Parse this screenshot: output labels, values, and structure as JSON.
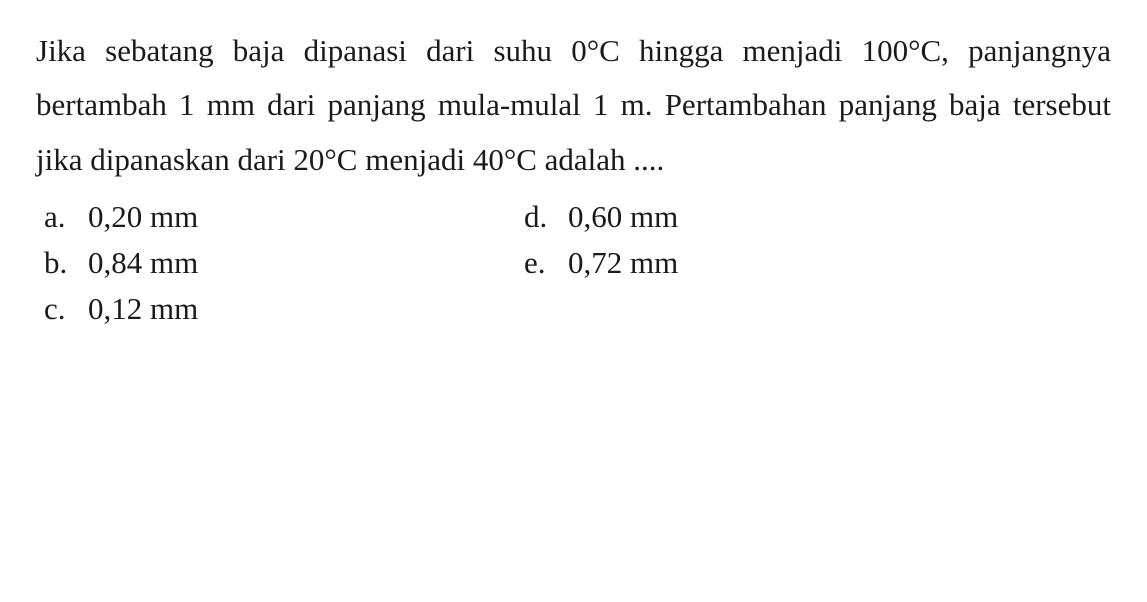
{
  "question": {
    "text": "Jika sebatang baja dipanasi dari suhu 0°C hingga menjadi 100°C, panjangnya bertambah 1 mm dari panjang mula-mulal 1 m. Pertambahan panjang baja tersebut jika dipanaskan dari 20°C menjadi 40°C adalah ...."
  },
  "options": {
    "a": {
      "letter": "a.",
      "value": "0,20 mm"
    },
    "b": {
      "letter": "b.",
      "value": "0,84 mm"
    },
    "c": {
      "letter": "c.",
      "value": "0,12 mm"
    },
    "d": {
      "letter": "d.",
      "value": "0,60 mm"
    },
    "e": {
      "letter": "e.",
      "value": "0,72 mm"
    }
  },
  "style": {
    "background_color": "#ffffff",
    "text_color": "#1a1a1a",
    "font_family": "Georgia, Times New Roman, serif",
    "question_fontsize": 31,
    "option_fontsize": 31,
    "line_height": 1.75
  }
}
